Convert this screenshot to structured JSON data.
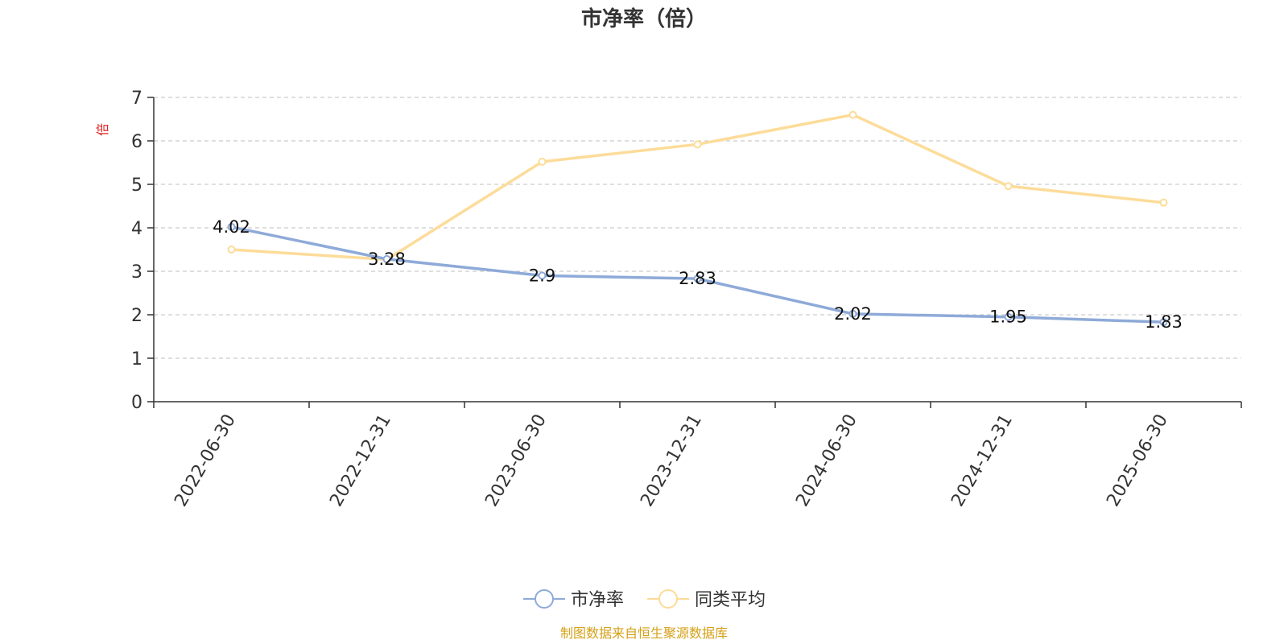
{
  "chart_data": {
    "type": "line",
    "title": "市净率（倍）",
    "ylabel": "倍",
    "xlabel": "",
    "categories": [
      "2022-06-30",
      "2022-12-31",
      "2023-06-30",
      "2023-12-31",
      "2024-06-30",
      "2024-12-31",
      "2025-06-30"
    ],
    "ylim": [
      0,
      7
    ],
    "yticks": [
      0,
      1,
      2,
      3,
      4,
      5,
      6,
      7
    ],
    "grid": true,
    "legend_position": "bottom",
    "series": [
      {
        "name": "市净率",
        "values": [
          4.02,
          3.28,
          2.9,
          2.83,
          2.02,
          1.95,
          1.83
        ],
        "labels": [
          "4.02",
          "3.28",
          "2.9",
          "2.83",
          "2.02",
          "1.95",
          "1.83"
        ],
        "color": "#8eaad8"
      },
      {
        "name": "同类平均",
        "values": [
          3.5,
          3.27,
          5.52,
          5.92,
          6.6,
          4.96,
          4.58
        ],
        "color": "#fddc99"
      }
    ]
  },
  "source_note": "制图数据来自恒生聚源数据库",
  "colors": {
    "axis": "#333333",
    "grid": "#cccccc",
    "unit": "#e02020",
    "source": "#d4a017"
  }
}
